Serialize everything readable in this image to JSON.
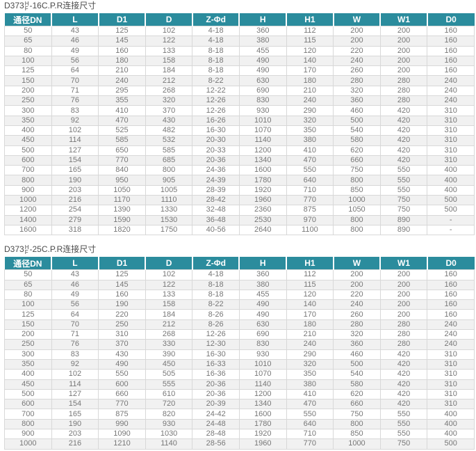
{
  "colors": {
    "header_bg": "#2B8C9D",
    "header_text": "#FFFFFF",
    "body_text": "#777777",
    "row_stripe": "#F1F1F1",
    "border": "#D8D8D8",
    "title_text": "#4A4A4A"
  },
  "tables": [
    {
      "title": {
        "prefix": "D373",
        "stack_top": "H",
        "stack_bottom": "F",
        "suffix": "-16C.P.R连接尺寸"
      },
      "columns": [
        "通径DN",
        "L",
        "D1",
        "D",
        "Z-Φd",
        "H",
        "H1",
        "W",
        "W1",
        "D0"
      ],
      "rows": [
        [
          "50",
          "43",
          "125",
          "102",
          "4-18",
          "360",
          "112",
          "200",
          "200",
          "160"
        ],
        [
          "65",
          "46",
          "145",
          "122",
          "4-18",
          "380",
          "115",
          "200",
          "200",
          "160"
        ],
        [
          "80",
          "49",
          "160",
          "133",
          "8-18",
          "455",
          "120",
          "220",
          "200",
          "160"
        ],
        [
          "100",
          "56",
          "180",
          "158",
          "8-18",
          "490",
          "140",
          "240",
          "200",
          "160"
        ],
        [
          "125",
          "64",
          "210",
          "184",
          "8-18",
          "490",
          "170",
          "260",
          "200",
          "160"
        ],
        [
          "150",
          "70",
          "240",
          "212",
          "8-22",
          "630",
          "180",
          "280",
          "280",
          "240"
        ],
        [
          "200",
          "71",
          "295",
          "268",
          "12-22",
          "690",
          "210",
          "320",
          "280",
          "240"
        ],
        [
          "250",
          "76",
          "355",
          "320",
          "12-26",
          "830",
          "240",
          "360",
          "280",
          "240"
        ],
        [
          "300",
          "83",
          "410",
          "370",
          "12-26",
          "930",
          "290",
          "460",
          "420",
          "310"
        ],
        [
          "350",
          "92",
          "470",
          "430",
          "16-26",
          "1010",
          "320",
          "500",
          "420",
          "310"
        ],
        [
          "400",
          "102",
          "525",
          "482",
          "16-30",
          "1070",
          "350",
          "540",
          "420",
          "310"
        ],
        [
          "450",
          "114",
          "585",
          "532",
          "20-30",
          "1140",
          "380",
          "580",
          "420",
          "310"
        ],
        [
          "500",
          "127",
          "650",
          "585",
          "20-33",
          "1200",
          "410",
          "620",
          "420",
          "310"
        ],
        [
          "600",
          "154",
          "770",
          "685",
          "20-36",
          "1340",
          "470",
          "660",
          "420",
          "310"
        ],
        [
          "700",
          "165",
          "840",
          "800",
          "24-36",
          "1600",
          "550",
          "750",
          "550",
          "400"
        ],
        [
          "800",
          "190",
          "950",
          "905",
          "24-39",
          "1780",
          "640",
          "800",
          "550",
          "400"
        ],
        [
          "900",
          "203",
          "1050",
          "1005",
          "28-39",
          "1920",
          "710",
          "850",
          "550",
          "400"
        ],
        [
          "1000",
          "216",
          "1170",
          "1110",
          "28-42",
          "1960",
          "770",
          "1000",
          "750",
          "500"
        ],
        [
          "1200",
          "254",
          "1390",
          "1330",
          "32-48",
          "2360",
          "875",
          "1050",
          "750",
          "500"
        ],
        [
          "1400",
          "279",
          "1590",
          "1530",
          "36-48",
          "2530",
          "970",
          "800",
          "890",
          "-"
        ],
        [
          "1600",
          "318",
          "1820",
          "1750",
          "40-56",
          "2640",
          "1100",
          "800",
          "890",
          "-"
        ]
      ]
    },
    {
      "title": {
        "prefix": "D373",
        "stack_top": "H",
        "stack_bottom": "F",
        "suffix": "-25C.P.R连接尺寸"
      },
      "columns": [
        "通径DN",
        "L",
        "D1",
        "D",
        "Z-Φd",
        "H",
        "H1",
        "W",
        "W1",
        "D0"
      ],
      "rows": [
        [
          "50",
          "43",
          "125",
          "102",
          "4-18",
          "360",
          "112",
          "200",
          "200",
          "160"
        ],
        [
          "65",
          "46",
          "145",
          "122",
          "8-18",
          "380",
          "115",
          "200",
          "200",
          "160"
        ],
        [
          "80",
          "49",
          "160",
          "133",
          "8-18",
          "455",
          "120",
          "220",
          "200",
          "160"
        ],
        [
          "100",
          "56",
          "190",
          "158",
          "8-22",
          "490",
          "140",
          "240",
          "200",
          "160"
        ],
        [
          "125",
          "64",
          "220",
          "184",
          "8-26",
          "490",
          "170",
          "260",
          "200",
          "160"
        ],
        [
          "150",
          "70",
          "250",
          "212",
          "8-26",
          "630",
          "180",
          "280",
          "280",
          "240"
        ],
        [
          "200",
          "71",
          "310",
          "268",
          "12-26",
          "690",
          "210",
          "320",
          "280",
          "240"
        ],
        [
          "250",
          "76",
          "370",
          "330",
          "12-30",
          "830",
          "240",
          "360",
          "280",
          "240"
        ],
        [
          "300",
          "83",
          "430",
          "390",
          "16-30",
          "930",
          "290",
          "460",
          "420",
          "310"
        ],
        [
          "350",
          "92",
          "490",
          "450",
          "16-33",
          "1010",
          "320",
          "500",
          "420",
          "310"
        ],
        [
          "400",
          "102",
          "550",
          "505",
          "16-36",
          "1070",
          "350",
          "540",
          "420",
          "310"
        ],
        [
          "450",
          "114",
          "600",
          "555",
          "20-36",
          "1140",
          "380",
          "580",
          "420",
          "310"
        ],
        [
          "500",
          "127",
          "660",
          "610",
          "20-36",
          "1200",
          "410",
          "620",
          "420",
          "310"
        ],
        [
          "600",
          "154",
          "770",
          "720",
          "20-39",
          "1340",
          "470",
          "660",
          "420",
          "310"
        ],
        [
          "700",
          "165",
          "875",
          "820",
          "24-42",
          "1600",
          "550",
          "750",
          "550",
          "400"
        ],
        [
          "800",
          "190",
          "990",
          "930",
          "24-48",
          "1780",
          "640",
          "800",
          "550",
          "400"
        ],
        [
          "900",
          "203",
          "1090",
          "1030",
          "28-48",
          "1920",
          "710",
          "850",
          "550",
          "400"
        ],
        [
          "1000",
          "216",
          "1210",
          "1140",
          "28-56",
          "1960",
          "770",
          "1000",
          "750",
          "500"
        ]
      ]
    }
  ]
}
